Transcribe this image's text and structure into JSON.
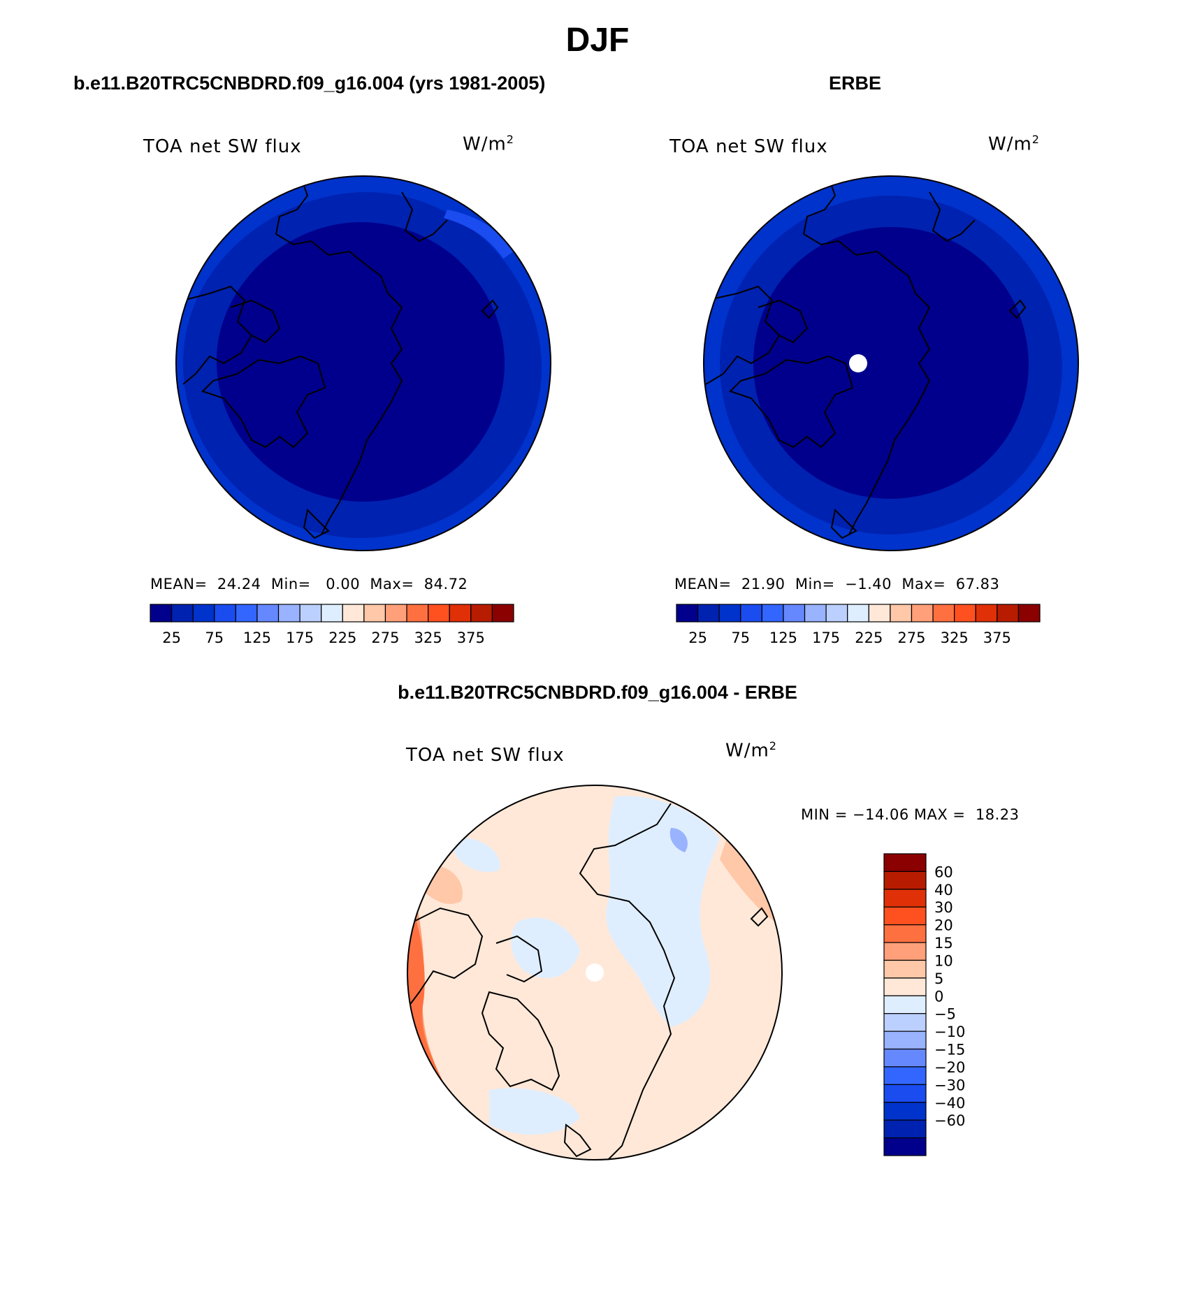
{
  "figure": {
    "title": "DJF"
  },
  "panels": [
    {
      "header": "b.e11.B20TRC5CNBDRD.f09_g16.004 (yrs 1981-2005)",
      "variable": "TOA net SW flux",
      "units_base": "W/m",
      "units_exp": "2",
      "stats": {
        "mean_label": "MEAN=",
        "mean": "24.24",
        "min_label": "Min=",
        "min": "0.00",
        "max_label": "Max=",
        "max": "84.72"
      }
    },
    {
      "header": "ERBE",
      "variable": "TOA net SW flux",
      "units_base": "W/m",
      "units_exp": "2",
      "stats": {
        "mean_label": "MEAN=",
        "mean": "21.90",
        "min_label": "Min=",
        "min": "−1.40",
        "max_label": "Max=",
        "max": "67.83"
      }
    },
    {
      "header": "b.e11.B20TRC5CNBDRD.f09_g16.004 - ERBE",
      "variable": "TOA net SW flux",
      "units_base": "W/m",
      "units_exp": "2",
      "stats": {
        "min_label": "MIN =",
        "min": "−14.06",
        "max_label": "MAX =",
        "max": "18.23"
      }
    }
  ],
  "chart_data": [
    {
      "type": "heatmap",
      "projection": "north-polar-stereographic",
      "title": "TOA net SW flux",
      "colorbar": {
        "orientation": "horizontal",
        "colors": [
          "#00008c",
          "#0022b0",
          "#0033cc",
          "#1a4cf0",
          "#3366ff",
          "#6688ff",
          "#99b3ff",
          "#bbd0ff",
          "#dfeeff",
          "#ffe8d8",
          "#ffc8a8",
          "#ffa07a",
          "#ff7040",
          "#ff5020",
          "#e03008",
          "#b81c00",
          "#8b0000"
        ],
        "tick_labels": [
          "25",
          "75",
          "125",
          "175",
          "225",
          "275",
          "325",
          "375"
        ]
      },
      "regions": [
        {
          "zone": "pole-to-~55N",
          "value_range": [
            0,
            25
          ]
        },
        {
          "zone": "~55N-~45N",
          "value_range": [
            25,
            50
          ]
        },
        {
          "zone": "~45N-40N",
          "value_range": [
            50,
            75
          ]
        }
      ],
      "stats": {
        "mean": 24.24,
        "min": 0.0,
        "max": 84.72
      }
    },
    {
      "type": "heatmap",
      "projection": "north-polar-stereographic",
      "title": "TOA net SW flux",
      "colorbar": {
        "orientation": "horizontal",
        "colors": [
          "#00008c",
          "#0022b0",
          "#0033cc",
          "#1a4cf0",
          "#3366ff",
          "#6688ff",
          "#99b3ff",
          "#bbd0ff",
          "#dfeeff",
          "#ffe8d8",
          "#ffc8a8",
          "#ffa07a",
          "#ff7040",
          "#ff5020",
          "#e03008",
          "#b81c00",
          "#8b0000"
        ],
        "tick_labels": [
          "25",
          "75",
          "125",
          "175",
          "225",
          "275",
          "325",
          "375"
        ]
      },
      "missing": "pole",
      "stats": {
        "mean": 21.9,
        "min": -1.4,
        "max": 67.83
      }
    },
    {
      "type": "heatmap",
      "projection": "north-polar-stereographic",
      "title": "TOA net SW flux",
      "colorbar": {
        "orientation": "vertical",
        "colors": [
          "#8b0000",
          "#b81c00",
          "#e03008",
          "#ff5020",
          "#ff7040",
          "#ffa07a",
          "#ffc8a8",
          "#ffe8d8",
          "#dfeeff",
          "#bbd0ff",
          "#99b3ff",
          "#6688ff",
          "#3366ff",
          "#1a4cf0",
          "#0033cc",
          "#0022b0",
          "#00008c"
        ],
        "tick_labels": [
          "60",
          "40",
          "30",
          "20",
          "15",
          "10",
          "5",
          "0",
          "−5",
          "−10",
          "−15",
          "−20",
          "−30",
          "−40",
          "−60"
        ]
      },
      "missing": "pole",
      "stats": {
        "min": -14.06,
        "max": 18.23
      }
    }
  ]
}
